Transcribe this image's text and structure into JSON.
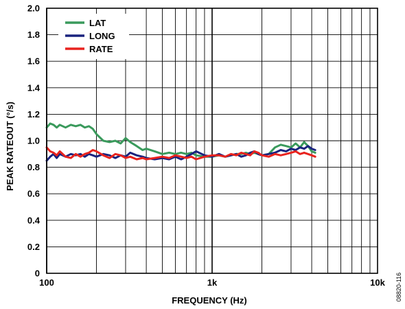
{
  "chart_data": {
    "type": "line",
    "xlabel": "FREQUENCY (Hz)",
    "ylabel": "PEAK RATEOUT (°/s)",
    "x_scale": "log",
    "xlim": [
      100,
      10000
    ],
    "ylim": [
      0,
      2.0
    ],
    "x_ticks": [
      {
        "value": 100,
        "label": "100"
      },
      {
        "value": 1000,
        "label": "1k"
      },
      {
        "value": 10000,
        "label": "10k"
      }
    ],
    "y_ticks": [
      {
        "value": 0,
        "label": "0"
      },
      {
        "value": 0.2,
        "label": "0.2"
      },
      {
        "value": 0.4,
        "label": "0.4"
      },
      {
        "value": 0.6,
        "label": "0.6"
      },
      {
        "value": 0.8,
        "label": "0.8"
      },
      {
        "value": 1.0,
        "label": "1.0"
      },
      {
        "value": 1.2,
        "label": "1.2"
      },
      {
        "value": 1.4,
        "label": "1.4"
      },
      {
        "value": 1.6,
        "label": "1.6"
      },
      {
        "value": 1.8,
        "label": "1.8"
      },
      {
        "value": 2.0,
        "label": "2.0"
      }
    ],
    "grid": true,
    "legend_position": "top-left",
    "series": [
      {
        "name": "LAT",
        "color": "#3a9a5c",
        "x": [
          100,
          105,
          110,
          115,
          120,
          125,
          130,
          140,
          150,
          160,
          170,
          180,
          190,
          200,
          220,
          240,
          260,
          280,
          300,
          320,
          350,
          380,
          400,
          450,
          500,
          550,
          600,
          650,
          700,
          750,
          800,
          900,
          1000,
          1100,
          1200,
          1300,
          1400,
          1500,
          1600,
          1700,
          1800,
          1900,
          2000,
          2200,
          2400,
          2600,
          2800,
          3000,
          3200,
          3400,
          3600,
          3800,
          4000,
          4200
        ],
        "y": [
          1.1,
          1.13,
          1.12,
          1.1,
          1.12,
          1.11,
          1.1,
          1.12,
          1.11,
          1.12,
          1.1,
          1.11,
          1.09,
          1.05,
          1.0,
          0.99,
          1.0,
          0.98,
          1.02,
          0.99,
          0.96,
          0.93,
          0.94,
          0.92,
          0.9,
          0.91,
          0.9,
          0.91,
          0.9,
          0.91,
          0.89,
          0.88,
          0.88,
          0.89,
          0.88,
          0.89,
          0.9,
          0.9,
          0.91,
          0.9,
          0.91,
          0.9,
          0.89,
          0.9,
          0.95,
          0.97,
          0.96,
          0.95,
          0.98,
          0.95,
          0.99,
          0.96,
          0.92,
          0.91
        ]
      },
      {
        "name": "LONG",
        "color": "#1a237e",
        "x": [
          100,
          105,
          110,
          115,
          120,
          130,
          140,
          150,
          160,
          170,
          180,
          190,
          200,
          220,
          240,
          260,
          280,
          300,
          320,
          350,
          380,
          400,
          450,
          500,
          550,
          600,
          650,
          700,
          750,
          800,
          900,
          1000,
          1100,
          1200,
          1300,
          1400,
          1500,
          1600,
          1700,
          1800,
          1900,
          2000,
          2200,
          2400,
          2600,
          2800,
          3000,
          3200,
          3400,
          3600,
          3800,
          4000,
          4200
        ],
        "y": [
          0.85,
          0.88,
          0.9,
          0.87,
          0.9,
          0.88,
          0.9,
          0.89,
          0.9,
          0.88,
          0.9,
          0.89,
          0.88,
          0.9,
          0.89,
          0.87,
          0.89,
          0.88,
          0.91,
          0.89,
          0.88,
          0.87,
          0.86,
          0.87,
          0.86,
          0.88,
          0.86,
          0.88,
          0.9,
          0.92,
          0.89,
          0.88,
          0.9,
          0.88,
          0.89,
          0.9,
          0.88,
          0.89,
          0.91,
          0.92,
          0.9,
          0.89,
          0.9,
          0.91,
          0.93,
          0.92,
          0.94,
          0.93,
          0.95,
          0.94,
          0.96,
          0.94,
          0.93
        ]
      },
      {
        "name": "RATE",
        "color": "#e8231e",
        "x": [
          100,
          105,
          110,
          115,
          120,
          130,
          140,
          150,
          160,
          170,
          180,
          190,
          200,
          220,
          240,
          260,
          280,
          300,
          320,
          350,
          380,
          400,
          450,
          500,
          550,
          600,
          650,
          700,
          750,
          800,
          900,
          1000,
          1100,
          1200,
          1300,
          1400,
          1500,
          1600,
          1700,
          1800,
          1900,
          2000,
          2200,
          2400,
          2600,
          2800,
          3000,
          3200,
          3400,
          3600,
          3800,
          4000,
          4200
        ],
        "y": [
          0.95,
          0.92,
          0.91,
          0.89,
          0.92,
          0.88,
          0.87,
          0.9,
          0.88,
          0.9,
          0.91,
          0.93,
          0.92,
          0.89,
          0.87,
          0.9,
          0.89,
          0.87,
          0.88,
          0.86,
          0.87,
          0.86,
          0.87,
          0.88,
          0.87,
          0.89,
          0.88,
          0.87,
          0.88,
          0.86,
          0.88,
          0.89,
          0.89,
          0.88,
          0.9,
          0.89,
          0.91,
          0.9,
          0.89,
          0.92,
          0.91,
          0.89,
          0.88,
          0.9,
          0.89,
          0.9,
          0.91,
          0.92,
          0.9,
          0.91,
          0.9,
          0.89,
          0.88
        ]
      }
    ]
  },
  "figure_id": "08820-116"
}
